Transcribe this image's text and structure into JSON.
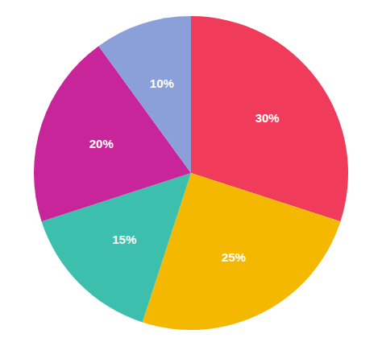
{
  "chart_data": {
    "type": "pie",
    "values": [
      30,
      25,
      15,
      20,
      10
    ],
    "value_labels": [
      "30%",
      "25%",
      "15%",
      "20%",
      "10%"
    ],
    "colors": [
      "#F03C5A",
      "#F5B800",
      "#3DBFAD",
      "#C8259A",
      "#8B9FD8"
    ],
    "data_labels": true
  }
}
